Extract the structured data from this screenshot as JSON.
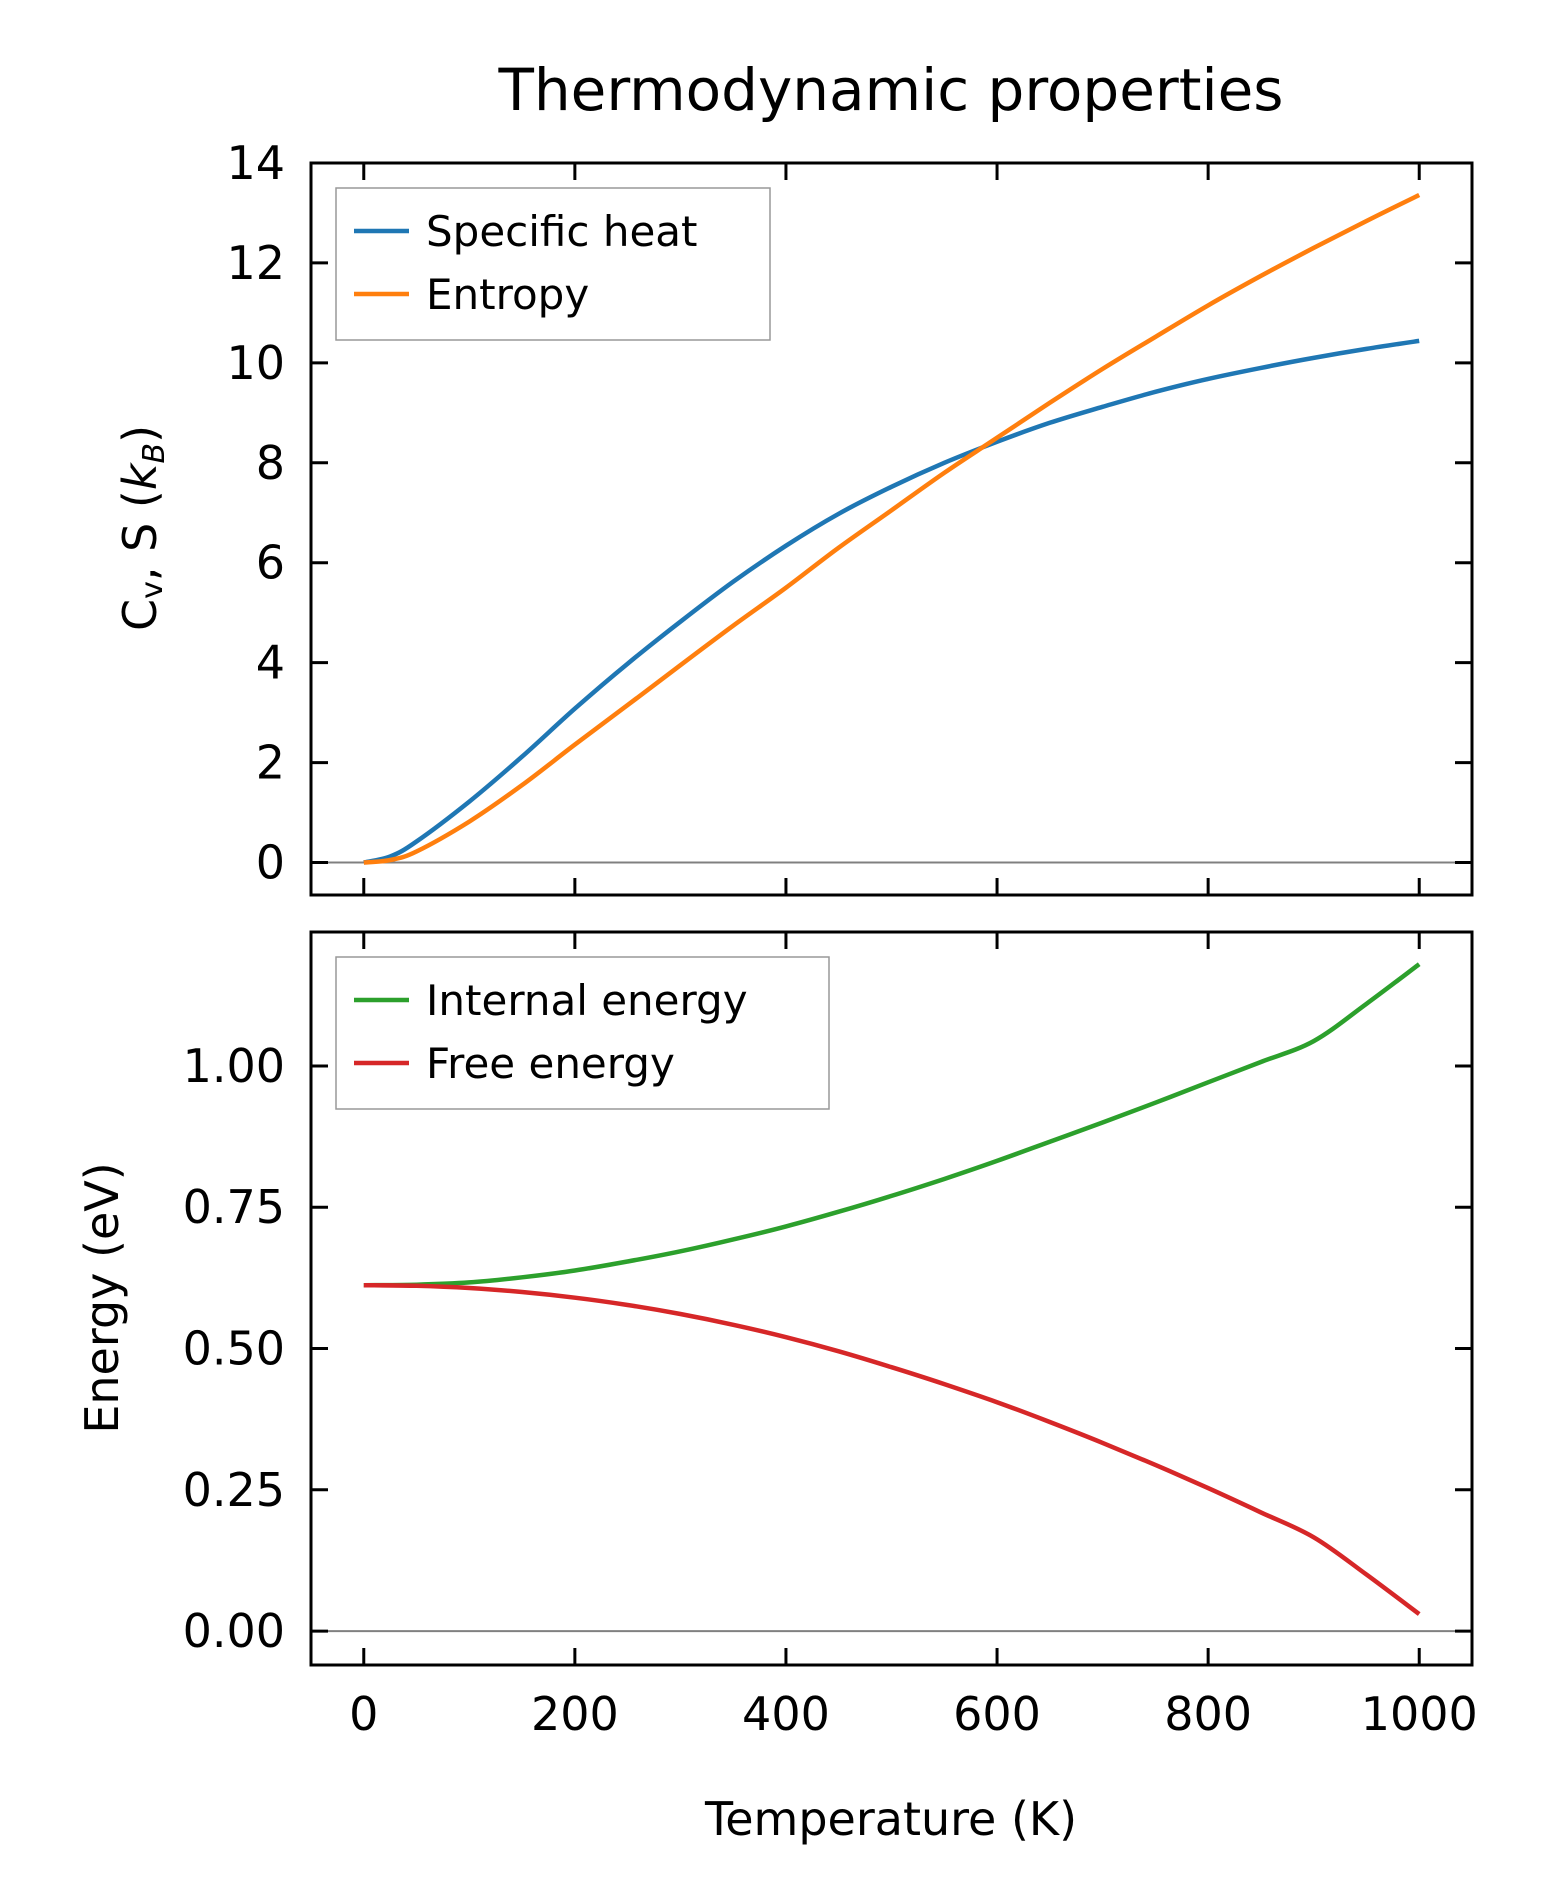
{
  "chart_data": [
    {
      "type": "line",
      "title": "Thermodynamic properties",
      "xlabel": "",
      "ylabel": "Cv, S (kB)",
      "ylabel_parts": {
        "c": "C",
        "sub": "v",
        "rest": ", S (",
        "k": "k",
        "ksub": "B",
        "close": ")"
      },
      "xlim": [
        -50,
        1050
      ],
      "ylim": [
        -0.65,
        14
      ],
      "xticks": [
        0,
        200,
        400,
        600,
        800,
        1000
      ],
      "xtick_labels_visible": false,
      "yticks": [
        0,
        2,
        4,
        6,
        8,
        10,
        12,
        14
      ],
      "ytick_labels": [
        "0",
        "2",
        "4",
        "6",
        "8",
        "10",
        "12",
        "14"
      ],
      "hline": 0,
      "legend": "top-left",
      "x": [
        0,
        25,
        50,
        100,
        150,
        200,
        250,
        300,
        350,
        400,
        450,
        500,
        550,
        600,
        650,
        700,
        750,
        800,
        850,
        900,
        950,
        1000
      ],
      "series": [
        {
          "name": "Specific heat",
          "color": "#1f77b4",
          "values": [
            0,
            0.12,
            0.42,
            1.22,
            2.12,
            3.08,
            3.98,
            4.82,
            5.62,
            6.34,
            6.98,
            7.52,
            8.0,
            8.42,
            8.8,
            9.12,
            9.42,
            9.68,
            9.9,
            10.1,
            10.28,
            10.44
          ]
        },
        {
          "name": "Entropy",
          "color": "#ff7f0e",
          "values": [
            0,
            0.05,
            0.22,
            0.82,
            1.55,
            2.36,
            3.15,
            3.95,
            4.74,
            5.5,
            6.3,
            7.05,
            7.8,
            8.5,
            9.2,
            9.88,
            10.52,
            11.15,
            11.74,
            12.3,
            12.84,
            13.36
          ]
        }
      ]
    },
    {
      "type": "line",
      "title": "",
      "xlabel": "Temperature (K)",
      "ylabel": "Energy (eV)",
      "xlim": [
        -50,
        1050
      ],
      "ylim": [
        -0.06,
        1.237
      ],
      "xticks": [
        0,
        200,
        400,
        600,
        800,
        1000
      ],
      "xtick_labels": [
        "0",
        "200",
        "400",
        "600",
        "800",
        "1000"
      ],
      "yticks": [
        0,
        0.25,
        0.5,
        0.75,
        1.0
      ],
      "ytick_labels": [
        "0.00",
        "0.25",
        "0.50",
        "0.75",
        "1.00"
      ],
      "hline": 0,
      "legend": "top-left",
      "x": [
        0,
        50,
        100,
        150,
        200,
        250,
        300,
        350,
        400,
        450,
        500,
        550,
        600,
        650,
        700,
        750,
        800,
        850,
        900,
        950,
        1000
      ],
      "series": [
        {
          "name": "Internal energy",
          "color": "#2ca02c",
          "values": [
            0.612,
            0.613,
            0.617,
            0.626,
            0.638,
            0.654,
            0.672,
            0.693,
            0.716,
            0.742,
            0.77,
            0.8,
            0.832,
            0.866,
            0.9,
            0.935,
            0.971,
            1.007,
            1.044,
            1.11,
            1.18
          ]
        },
        {
          "name": "Free energy",
          "color": "#d62728",
          "values": [
            0.612,
            0.611,
            0.607,
            0.6,
            0.59,
            0.577,
            0.561,
            0.542,
            0.52,
            0.495,
            0.467,
            0.437,
            0.405,
            0.37,
            0.333,
            0.294,
            0.253,
            0.21,
            0.166,
            0.1,
            0.03
          ]
        }
      ]
    }
  ]
}
